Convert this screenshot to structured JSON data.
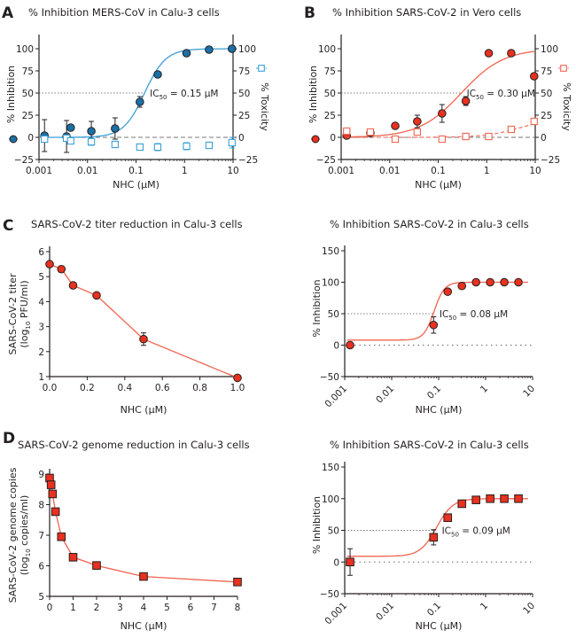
{
  "figure": {
    "colors": {
      "blue": "#1b6fa6",
      "blue_light": "#3a9fd6",
      "red": "#e8311f",
      "red_line": "#f06450",
      "dark": "#231f20",
      "dash": "#777777"
    }
  },
  "chart_data": [
    {
      "id": "A",
      "panel_label": "A",
      "type": "scatter",
      "title": "% Inhibition MERS-CoV in Calu-3 cells",
      "xlabel": "NHC (µM)",
      "ylabel": "% Inhibition",
      "y2label": "% Toxicity",
      "xscale": "log",
      "xlim": [
        0.001,
        10
      ],
      "ylim": [
        -25,
        110
      ],
      "xticks": [
        "0.001",
        "0.01",
        "0.1",
        "1",
        "10"
      ],
      "yticks": [
        "−25",
        "0",
        "25",
        "50",
        "75",
        "100"
      ],
      "ic50_label": "IC",
      "ic50_sub": "50",
      "ic50_value": " = 0.15 µM",
      "ic50": 0.15,
      "fit": {
        "bottom": 0,
        "top": 100,
        "hill": 2.0
      },
      "series": [
        {
          "name": "% Inhibition",
          "marker": "circle",
          "color": "#1b6fa6",
          "x": [
            0.0013,
            0.0037,
            0.0045,
            0.012,
            0.037,
            0.12,
            0.28,
            1.1,
            3.2,
            9.5
          ],
          "y": [
            2,
            1,
            11,
            7,
            10,
            40,
            71,
            95,
            99,
            100
          ],
          "err": [
            18,
            18,
            0,
            11,
            12,
            6,
            0,
            0,
            0,
            0
          ]
        },
        {
          "name": "% Toxicity",
          "marker": "square-open",
          "color": "#3a9fd6",
          "x": [
            0.0013,
            0.0037,
            0.0045,
            0.012,
            0.037,
            0.12,
            0.28,
            1.1,
            3.2,
            9.5
          ],
          "y": [
            -2,
            -1,
            -4,
            -5,
            -8,
            -11,
            -11,
            -10,
            -9,
            -6
          ],
          "err": [
            3,
            3,
            3,
            4,
            3,
            3,
            4,
            4,
            3,
            6
          ]
        }
      ]
    },
    {
      "id": "B",
      "panel_label": "B",
      "type": "scatter",
      "title": "% Inhibition SARS-CoV-2 in Vero cells",
      "xlabel": "NHC (µM)",
      "ylabel": "% Inhibition",
      "y2label": "% Toxicity",
      "xscale": "log",
      "xlim": [
        0.001,
        10
      ],
      "ylim": [
        -25,
        110
      ],
      "xticks": [
        "0.001",
        "0.01",
        "0.1",
        "1",
        "10"
      ],
      "yticks": [
        "−25",
        "0",
        "25",
        "50",
        "75",
        "100"
      ],
      "ic50_label": "IC",
      "ic50_sub": "50",
      "ic50_value": " = 0.30 µM",
      "ic50": 0.3,
      "fit": {
        "bottom": 0,
        "top": 100,
        "hill": 1.0
      },
      "series": [
        {
          "name": "% Inhibition",
          "marker": "circle",
          "color": "#e8311f",
          "x": [
            0.0013,
            0.004,
            0.013,
            0.037,
            0.12,
            0.37,
            1.1,
            3.2,
            9.5
          ],
          "y": [
            2,
            5,
            13,
            18,
            27,
            41,
            95,
            95,
            69
          ],
          "err": [
            0,
            3,
            0,
            7,
            10,
            5,
            0,
            0,
            0
          ]
        },
        {
          "name": "% Toxicity",
          "marker": "square-open",
          "color": "#f06450",
          "x": [
            0.0013,
            0.004,
            0.013,
            0.037,
            0.12,
            0.37,
            1.1,
            3.2,
            9.5
          ],
          "y": [
            7,
            6,
            -2,
            6,
            -2,
            1,
            1,
            9,
            18
          ],
          "err": [
            0,
            0,
            0,
            0,
            0,
            0,
            0,
            0,
            0
          ]
        }
      ]
    },
    {
      "id": "C-left",
      "panel_label": "C",
      "type": "line",
      "title": "SARS-CoV-2 titer reduction in Calu-3 cells",
      "xlabel": "NHC (µM)",
      "ylabel_line1": "SARS-CoV-2 titer",
      "ylabel_line2_pre": "(log",
      "ylabel_line2_sub": "10",
      "ylabel_line2_post": " PFU/ml)",
      "xlim": [
        0,
        1
      ],
      "ylim": [
        1,
        6
      ],
      "xticks": [
        "0.0",
        "0.2",
        "0.4",
        "0.6",
        "0.8",
        "1.0"
      ],
      "yticks": [
        "1",
        "2",
        "3",
        "4",
        "5",
        "6"
      ],
      "series": [
        {
          "name": "titer",
          "marker": "circle",
          "color": "#e8311f",
          "x": [
            0,
            0.0625,
            0.125,
            0.25,
            0.5,
            1.0
          ],
          "y": [
            5.5,
            5.3,
            4.65,
            4.25,
            2.5,
            0.95
          ],
          "err": [
            0,
            0.12,
            0,
            0,
            0.25,
            0
          ]
        }
      ]
    },
    {
      "id": "C-right",
      "panel_label": "",
      "type": "scatter",
      "title": "% Inhibition SARS-CoV-2 in Calu-3 cells",
      "xlabel": "NHC (µM)",
      "ylabel": "% Inhibition",
      "xscale": "log",
      "xlim": [
        0.001,
        10
      ],
      "ylim": [
        -50,
        150
      ],
      "xticks": [
        "0.001",
        "0.01",
        "0.1",
        "1",
        "10"
      ],
      "yticks": [
        "−50",
        "0",
        "50",
        "100",
        "150"
      ],
      "ic50_label": "IC",
      "ic50_sub": "50",
      "ic50_value": " = 0.08 µM",
      "ic50": 0.08,
      "fit": {
        "bottom": 8,
        "top": 100,
        "hill": 4.0
      },
      "series": [
        {
          "name": "% Inhibition",
          "marker": "circle",
          "color": "#e8311f",
          "x": [
            0.0013,
            0.078,
            0.156,
            0.3125,
            0.625,
            1.25,
            2.5,
            5
          ],
          "y": [
            0,
            32,
            85,
            94,
            100,
            100,
            100,
            100
          ],
          "err": [
            0,
            13,
            0,
            0,
            0,
            0,
            0,
            0
          ]
        }
      ]
    },
    {
      "id": "D-left",
      "panel_label": "D",
      "type": "line",
      "title": "SARS-CoV-2 genome reduction in Calu-3 cells",
      "xlabel": "NHC (µM)",
      "ylabel_line1": "SARS-CoV-2 genome copies",
      "ylabel_line2_pre": "(log",
      "ylabel_line2_sub": "10",
      "ylabel_line2_post": " copies/ml)",
      "xlim": [
        0,
        8
      ],
      "ylim": [
        5,
        9
      ],
      "xticks": [
        "0",
        "1",
        "2",
        "3",
        "4",
        "5",
        "6",
        "7",
        "8"
      ],
      "yticks": [
        "5",
        "6",
        "7",
        "8",
        "9"
      ],
      "series": [
        {
          "name": "genome copies",
          "marker": "square",
          "color": "#e8311f",
          "x": [
            0,
            0.0625,
            0.125,
            0.25,
            0.5,
            1,
            2,
            4,
            8
          ],
          "y": [
            8.87,
            8.65,
            8.35,
            7.77,
            6.95,
            6.28,
            6.01,
            5.65,
            5.47
          ],
          "err": [
            0,
            0,
            0,
            0,
            0,
            0,
            0,
            0,
            0
          ]
        }
      ]
    },
    {
      "id": "D-right",
      "panel_label": "",
      "type": "scatter",
      "title": "% Inhibition SARS-CoV-2 in Calu-3 cells",
      "xlabel": "NHC (µM)",
      "ylabel": "% Inhibition",
      "xscale": "log",
      "xlim": [
        0.001,
        10
      ],
      "ylim": [
        -50,
        150
      ],
      "xticks": [
        "0.001",
        "0.01",
        "0.1",
        "1",
        "10"
      ],
      "yticks": [
        "−50",
        "0",
        "50",
        "100",
        "150"
      ],
      "ic50_label": "IC",
      "ic50_sub": "50",
      "ic50_value": " = 0.09 µM",
      "ic50": 0.09,
      "fit": {
        "bottom": 9,
        "top": 100,
        "hill": 2.5
      },
      "series": [
        {
          "name": "% Inhibition",
          "marker": "square",
          "color": "#e8311f",
          "x": [
            0.0013,
            0.078,
            0.156,
            0.3125,
            0.625,
            1.25,
            2.5,
            5
          ],
          "y": [
            0,
            39,
            70,
            92,
            98,
            100,
            100,
            100
          ],
          "err": [
            21,
            12,
            0,
            0,
            0,
            0,
            0,
            0
          ]
        }
      ]
    }
  ]
}
